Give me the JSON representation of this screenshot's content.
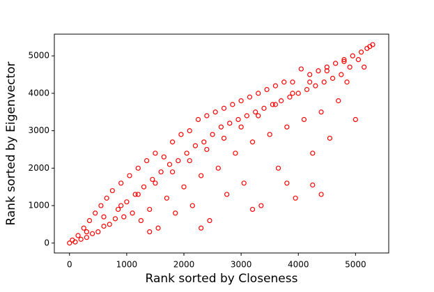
{
  "chart_data": {
    "type": "scatter",
    "x_label": "Rank sorted by Closeness",
    "y_label": "Rank sorted by Eigenvector",
    "color": "#ff0000",
    "xlim": [
      -265,
      5580
    ],
    "ylim": [
      -265,
      5580
    ],
    "xticks": [
      0,
      1000,
      2000,
      3000,
      4000,
      5000
    ],
    "yticks": [
      0,
      1000,
      2000,
      3000,
      4000,
      5000
    ],
    "x": [
      0,
      50,
      100,
      150,
      200,
      250,
      300,
      350,
      400,
      450,
      500,
      550,
      600,
      650,
      700,
      750,
      800,
      850,
      900,
      950,
      1000,
      1050,
      1100,
      1150,
      1200,
      1250,
      1300,
      1350,
      1400,
      1450,
      1500,
      1550,
      1600,
      1650,
      1700,
      1750,
      1800,
      1850,
      1900,
      1950,
      2000,
      2050,
      2100,
      2150,
      2200,
      2250,
      2300,
      2350,
      2400,
      2450,
      2500,
      2550,
      2600,
      2650,
      2700,
      2750,
      2800,
      2850,
      2900,
      2950,
      3000,
      3050,
      3100,
      3150,
      3200,
      3250,
      3300,
      3350,
      3400,
      3450,
      3500,
      3550,
      3600,
      3650,
      3700,
      3750,
      3800,
      3850,
      3900,
      3950,
      4000,
      4050,
      4100,
      4150,
      4200,
      4250,
      4300,
      4350,
      4400,
      4450,
      4500,
      4550,
      4600,
      4650,
      4700,
      4750,
      4800,
      4850,
      4900,
      4950,
      5000,
      5050,
      5100,
      5150,
      5200,
      5250,
      5300,
      300,
      600,
      900,
      1200,
      1500,
      1800,
      2100,
      2400,
      2700,
      3000,
      3300,
      3600,
      3900,
      4200,
      4500,
      4800,
      2300,
      1400,
      3800,
      4250,
      4400,
      3200
    ],
    "y": [
      0,
      80,
      30,
      200,
      100,
      400,
      150,
      600,
      250,
      800,
      300,
      1000,
      450,
      1200,
      500,
      1400,
      650,
      900,
      1600,
      700,
      1100,
      1800,
      800,
      1300,
      2000,
      600,
      1500,
      2200,
      900,
      1700,
      2400,
      400,
      1900,
      2300,
      1200,
      2100,
      2700,
      800,
      2200,
      2900,
      1500,
      2400,
      3000,
      1000,
      2600,
      3300,
      1800,
      2700,
      3400,
      600,
      2900,
      3500,
      2000,
      3100,
      3600,
      1300,
      3200,
      3700,
      2400,
      3300,
      3800,
      1600,
      3400,
      3900,
      2700,
      3500,
      4000,
      1000,
      3600,
      4100,
      2900,
      3700,
      4200,
      2000,
      3800,
      4300,
      3100,
      3900,
      4300,
      1200,
      4000,
      4650,
      3300,
      4100,
      4500,
      2400,
      4200,
      4600,
      3500,
      4300,
      4700,
      2800,
      4400,
      4800,
      3800,
      4500,
      4900,
      4300,
      4700,
      5000,
      3300,
      4900,
      5100,
      4700,
      5200,
      5250,
      5300,
      300,
      700,
      1000,
      1300,
      1600,
      1900,
      2200,
      2500,
      2800,
      3100,
      3400,
      3700,
      4000,
      4300,
      4600,
      4850,
      400,
      300,
      1600,
      1550,
      1300,
      900
    ]
  }
}
